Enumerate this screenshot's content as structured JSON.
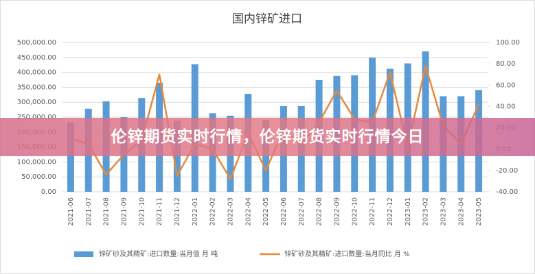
{
  "chart_data": {
    "type": "bar_line",
    "title": "国内锌矿进口",
    "categories": [
      "2021-06",
      "2021-07",
      "2021-08",
      "2021-09",
      "2021-10",
      "2021-11",
      "2021-12",
      "2022-01",
      "2022-02",
      "2022-03",
      "2022-04",
      "2022-05",
      "2022-06",
      "2022-07",
      "2022-08",
      "2022-09",
      "2022-10",
      "2022-11",
      "2022-12",
      "2023-01",
      "2023-02",
      "2023-03",
      "2023-04",
      "2023-05"
    ],
    "series": [
      {
        "name": "锌矿砂及其精矿:进口数量:当月值 月 吨",
        "type": "bar",
        "color": "#5b9bd5",
        "values": [
          232000,
          278000,
          303000,
          250000,
          314000,
          365000,
          238000,
          427000,
          263000,
          255000,
          328000,
          240000,
          287000,
          287000,
          374000,
          388000,
          390000,
          449000,
          412000,
          430000,
          470000,
          320000,
          320000,
          341000
        ]
      },
      {
        "name": "锌矿砂及其精矿:进口数量:当月同比 月 %",
        "type": "line",
        "axis": "y2",
        "color": "#e48a3c",
        "values": [
          10,
          5,
          -24,
          -5,
          8,
          70,
          -25,
          5,
          0,
          -28,
          15,
          -20,
          18,
          5,
          25,
          55,
          28,
          25,
          72,
          2,
          78,
          22,
          5,
          42
        ]
      }
    ],
    "ylim": [
      0,
      500000
    ],
    "yticks": [
      {
        "value": 0,
        "label": "0.00"
      },
      {
        "value": 50000,
        "label": "50,000.00"
      },
      {
        "value": 100000,
        "label": "100,000.00"
      },
      {
        "value": 150000,
        "label": "150,000.00"
      },
      {
        "value": 200000,
        "label": "200,000.00"
      },
      {
        "value": 250000,
        "label": "250,000.00"
      },
      {
        "value": 300000,
        "label": "300,000.00"
      },
      {
        "value": 350000,
        "label": "350,000.00"
      },
      {
        "value": 400000,
        "label": "400,000.00"
      },
      {
        "value": 450000,
        "label": "450,000.00"
      },
      {
        "value": 500000,
        "label": "500,000.00"
      }
    ],
    "y2lim": [
      -40,
      100
    ],
    "y2ticks": [
      {
        "value": -40,
        "label": "-40.00"
      },
      {
        "value": -20,
        "label": "-20.00"
      },
      {
        "value": 0,
        "label": "0.00"
      },
      {
        "value": 20,
        "label": "20.00"
      },
      {
        "value": 40,
        "label": "40.00"
      },
      {
        "value": 60,
        "label": "60.00"
      },
      {
        "value": 80,
        "label": "80.00"
      },
      {
        "value": 100,
        "label": "100.00"
      }
    ],
    "grid": true
  },
  "banner": {
    "text": "伦锌期货实时行情，伦锌期货实时行情今日"
  }
}
